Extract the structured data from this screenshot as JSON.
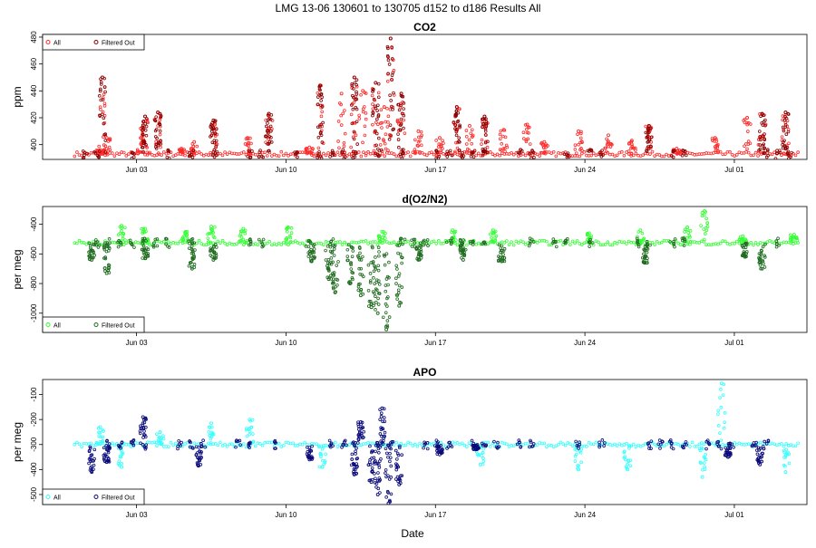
{
  "page_title": "LMG   13-06    130601 to 130705    d152 to d186   Results All",
  "shared_xlabel": "Date",
  "colors": {
    "co2_all": "#ff2a2a",
    "co2_filtered": "#8b0000",
    "o2_all": "#33ff33",
    "o2_filtered": "#1f6b1f",
    "apo_all": "#33ffff",
    "apo_filtered": "#0a0a7a"
  },
  "chart_data": [
    {
      "type": "scatter",
      "title": "CO2",
      "xlabel": "",
      "ylabel": "ppm",
      "x_unit": "day of June 2013 (date axis)",
      "xlim": [
        -1.4,
        34.4
      ],
      "ylim": [
        389,
        482
      ],
      "x_tick_labels": [
        "Jun 03",
        "Jun 10",
        "Jun 17",
        "Jun 24",
        "Jul 01"
      ],
      "y_tick_labels": [
        "400",
        "420",
        "440",
        "460",
        "480"
      ],
      "legend": {
        "position": "top-left",
        "entries": [
          "All",
          "Filtered Out"
        ]
      },
      "series": [
        {
          "name": "All",
          "color": "#ff2a2a",
          "baseline": 393,
          "spikes": [
            [
              1.3,
              396
            ],
            [
              1.4,
              450
            ],
            [
              1.6,
              405
            ],
            [
              3.2,
              412
            ],
            [
              3.4,
              421
            ],
            [
              4.0,
              424
            ],
            [
              5.1,
              397
            ],
            [
              5.7,
              402
            ],
            [
              6.6,
              418
            ],
            [
              8.2,
              405
            ],
            [
              9.2,
              423
            ],
            [
              11.1,
              398
            ],
            [
              11.6,
              444
            ],
            [
              12.6,
              438
            ],
            [
              13.2,
              450
            ],
            [
              13.6,
              440
            ],
            [
              14.2,
              446
            ],
            [
              14.6,
              428
            ],
            [
              14.9,
              479
            ],
            [
              15.4,
              438
            ],
            [
              16.2,
              410
            ],
            [
              17.2,
              405
            ],
            [
              18.0,
              428
            ],
            [
              18.6,
              414
            ],
            [
              19.3,
              421
            ],
            [
              20.2,
              411
            ],
            [
              21.3,
              415
            ],
            [
              22.1,
              402
            ],
            [
              23.7,
              410
            ],
            [
              25.1,
              407
            ],
            [
              26.2,
              403
            ],
            [
              27.0,
              414
            ],
            [
              28.3,
              397
            ],
            [
              30.1,
              405
            ],
            [
              31.6,
              420
            ],
            [
              32.3,
              423
            ],
            [
              33.4,
              424
            ],
            [
              36.4,
              398
            ]
          ]
        },
        {
          "name": "Filtered Out",
          "color": "#8b0000",
          "points": [
            [
              1.4,
              450
            ],
            [
              3.4,
              421
            ],
            [
              4.0,
              424
            ],
            [
              6.6,
              418
            ],
            [
              9.2,
              423
            ],
            [
              11.6,
              444
            ],
            [
              13.2,
              450
            ],
            [
              14.2,
              446
            ],
            [
              14.9,
              479
            ],
            [
              15.4,
              438
            ],
            [
              18.0,
              428
            ],
            [
              19.3,
              421
            ],
            [
              27.0,
              414
            ],
            [
              32.3,
              423
            ],
            [
              33.4,
              424
            ]
          ]
        }
      ]
    },
    {
      "type": "scatter",
      "title": "d(O2/N2)",
      "xlabel": "",
      "ylabel": "per meg",
      "x_unit": "day of June 2013 (date axis)",
      "xlim": [
        -1.4,
        34.4
      ],
      "ylim": [
        -1130,
        -280
      ],
      "x_tick_labels": [
        "Jun 03",
        "Jun 10",
        "Jun 17",
        "Jun 24",
        "Jul 01"
      ],
      "y_tick_labels": [
        "-400",
        "-600",
        "-800",
        "-1000"
      ],
      "legend": {
        "position": "bottom-left",
        "entries": [
          "All",
          "Filtered Out"
        ]
      },
      "series": [
        {
          "name": "All",
          "color": "#33ff33",
          "baseline": -525,
          "spikes": [
            [
              2.3,
              -410
            ],
            [
              3.4,
              -430
            ],
            [
              5.3,
              -450
            ],
            [
              6.5,
              -415
            ],
            [
              8.0,
              -430
            ],
            [
              10.1,
              -420
            ],
            [
              14.5,
              -450
            ],
            [
              17.8,
              -440
            ],
            [
              19.7,
              -440
            ],
            [
              24.2,
              -460
            ],
            [
              26.6,
              -440
            ],
            [
              28.8,
              -420
            ],
            [
              29.6,
              -310
            ],
            [
              31.4,
              -480
            ],
            [
              33.8,
              -470
            ]
          ]
        },
        {
          "name": "Filtered Out",
          "color": "#1f6b1f",
          "points": [
            [
              0.9,
              -640
            ],
            [
              1.6,
              -730
            ],
            [
              3.4,
              -630
            ],
            [
              5.6,
              -700
            ],
            [
              6.6,
              -640
            ],
            [
              11.2,
              -650
            ],
            [
              12.0,
              -770
            ],
            [
              12.3,
              -860
            ],
            [
              13.0,
              -800
            ],
            [
              13.5,
              -880
            ],
            [
              14.0,
              -960
            ],
            [
              14.3,
              -1000
            ],
            [
              14.7,
              -1110
            ],
            [
              15.3,
              -950
            ],
            [
              16.2,
              -640
            ],
            [
              18.3,
              -640
            ],
            [
              20.1,
              -650
            ],
            [
              26.8,
              -660
            ],
            [
              31.5,
              -620
            ],
            [
              32.3,
              -700
            ]
          ]
        }
      ]
    },
    {
      "type": "scatter",
      "title": "APO",
      "xlabel": "Date",
      "ylabel": "per meg",
      "x_unit": "day of June 2013 (date axis)",
      "xlim": [
        -1.4,
        34.4
      ],
      "ylim": [
        -540,
        -40
      ],
      "x_tick_labels": [
        "Jun 03",
        "Jun 10",
        "Jun 17",
        "Jun 24",
        "Jul 01"
      ],
      "y_tick_labels": [
        "-100",
        "-200",
        "-300",
        "-400",
        "-500"
      ],
      "legend": {
        "position": "bottom-left",
        "entries": [
          "All",
          "Filtered Out"
        ]
      },
      "series": [
        {
          "name": "All",
          "color": "#33ffff",
          "baseline": -300,
          "spikes": [
            [
              1.3,
              -230
            ],
            [
              2.3,
              -390
            ],
            [
              4.1,
              -250
            ],
            [
              6.5,
              -215
            ],
            [
              8.3,
              -200
            ],
            [
              11.7,
              -390
            ],
            [
              19.1,
              -380
            ],
            [
              23.7,
              -400
            ],
            [
              26.0,
              -400
            ],
            [
              29.5,
              -430
            ],
            [
              30.4,
              -55
            ],
            [
              33.4,
              -410
            ]
          ]
        },
        {
          "name": "Filtered Out",
          "color": "#0a0a7a",
          "points": [
            [
              0.9,
              -410
            ],
            [
              1.6,
              -370
            ],
            [
              3.3,
              -190
            ],
            [
              5.9,
              -385
            ],
            [
              11.1,
              -360
            ],
            [
              13.2,
              -420
            ],
            [
              13.5,
              -210
            ],
            [
              14.0,
              -450
            ],
            [
              14.3,
              -500
            ],
            [
              14.5,
              -155
            ],
            [
              14.8,
              -535
            ],
            [
              15.3,
              -460
            ],
            [
              17.2,
              -340
            ],
            [
              18.9,
              -320
            ],
            [
              30.7,
              -350
            ],
            [
              32.2,
              -380
            ]
          ]
        }
      ]
    }
  ]
}
